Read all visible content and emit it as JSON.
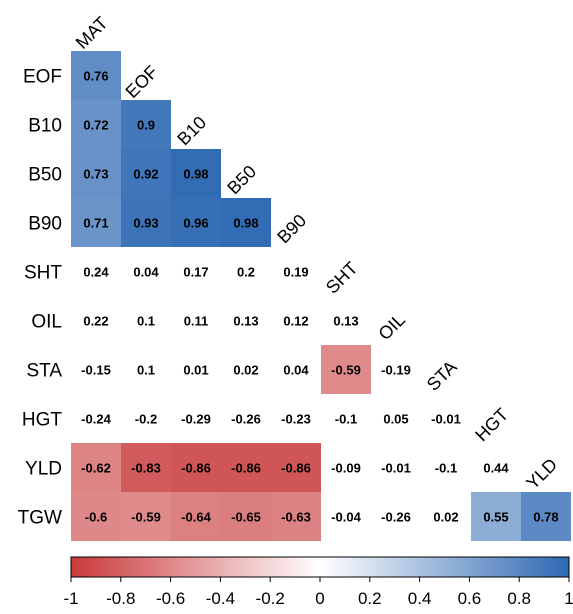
{
  "chart_data": {
    "type": "heatmap",
    "title": "",
    "xlabel": "",
    "ylabel": "",
    "variables": [
      "MAT",
      "EOF",
      "B10",
      "B50",
      "B90",
      "SHT",
      "OIL",
      "STA",
      "HGT",
      "YLD",
      "TGW"
    ],
    "row_labels": [
      "EOF",
      "B10",
      "B50",
      "B90",
      "SHT",
      "OIL",
      "STA",
      "HGT",
      "YLD",
      "TGW"
    ],
    "col_labels": [
      "MAT",
      "EOF",
      "B10",
      "B50",
      "B90",
      "SHT",
      "OIL",
      "STA",
      "HGT",
      "YLD"
    ],
    "values": [
      [
        0.76
      ],
      [
        0.72,
        0.9
      ],
      [
        0.73,
        0.92,
        0.98
      ],
      [
        0.71,
        0.93,
        0.96,
        0.98
      ],
      [
        0.24,
        0.04,
        0.17,
        0.2,
        0.19
      ],
      [
        0.22,
        0.1,
        0.11,
        0.13,
        0.12,
        0.13
      ],
      [
        -0.15,
        0.1,
        0.01,
        0.02,
        0.04,
        -0.59,
        -0.19
      ],
      [
        -0.24,
        -0.2,
        -0.29,
        -0.26,
        -0.23,
        -0.1,
        0.05,
        -0.01
      ],
      [
        -0.62,
        -0.83,
        -0.86,
        -0.86,
        -0.86,
        -0.09,
        -0.01,
        -0.1,
        0.44
      ],
      [
        -0.6,
        -0.59,
        -0.64,
        -0.65,
        -0.63,
        -0.04,
        -0.26,
        0.02,
        0.55,
        0.78
      ]
    ],
    "colorbar": {
      "range": [
        -1,
        1
      ],
      "ticks": [
        -1,
        -0.8,
        -0.6,
        -0.4,
        -0.2,
        0,
        0.2,
        0.4,
        0.6,
        0.8,
        1
      ],
      "tick_labels": [
        "-1",
        "-0.8",
        "-0.6",
        "-0.4",
        "-0.2",
        "0",
        "0.2",
        "0.4",
        "0.6",
        "0.8",
        "1"
      ],
      "low_color": "#c8393b",
      "mid_color": "#ffffff",
      "high_color": "#2e69b3"
    },
    "highlight_threshold": 0.5,
    "grid": false,
    "legend": "bottom"
  }
}
